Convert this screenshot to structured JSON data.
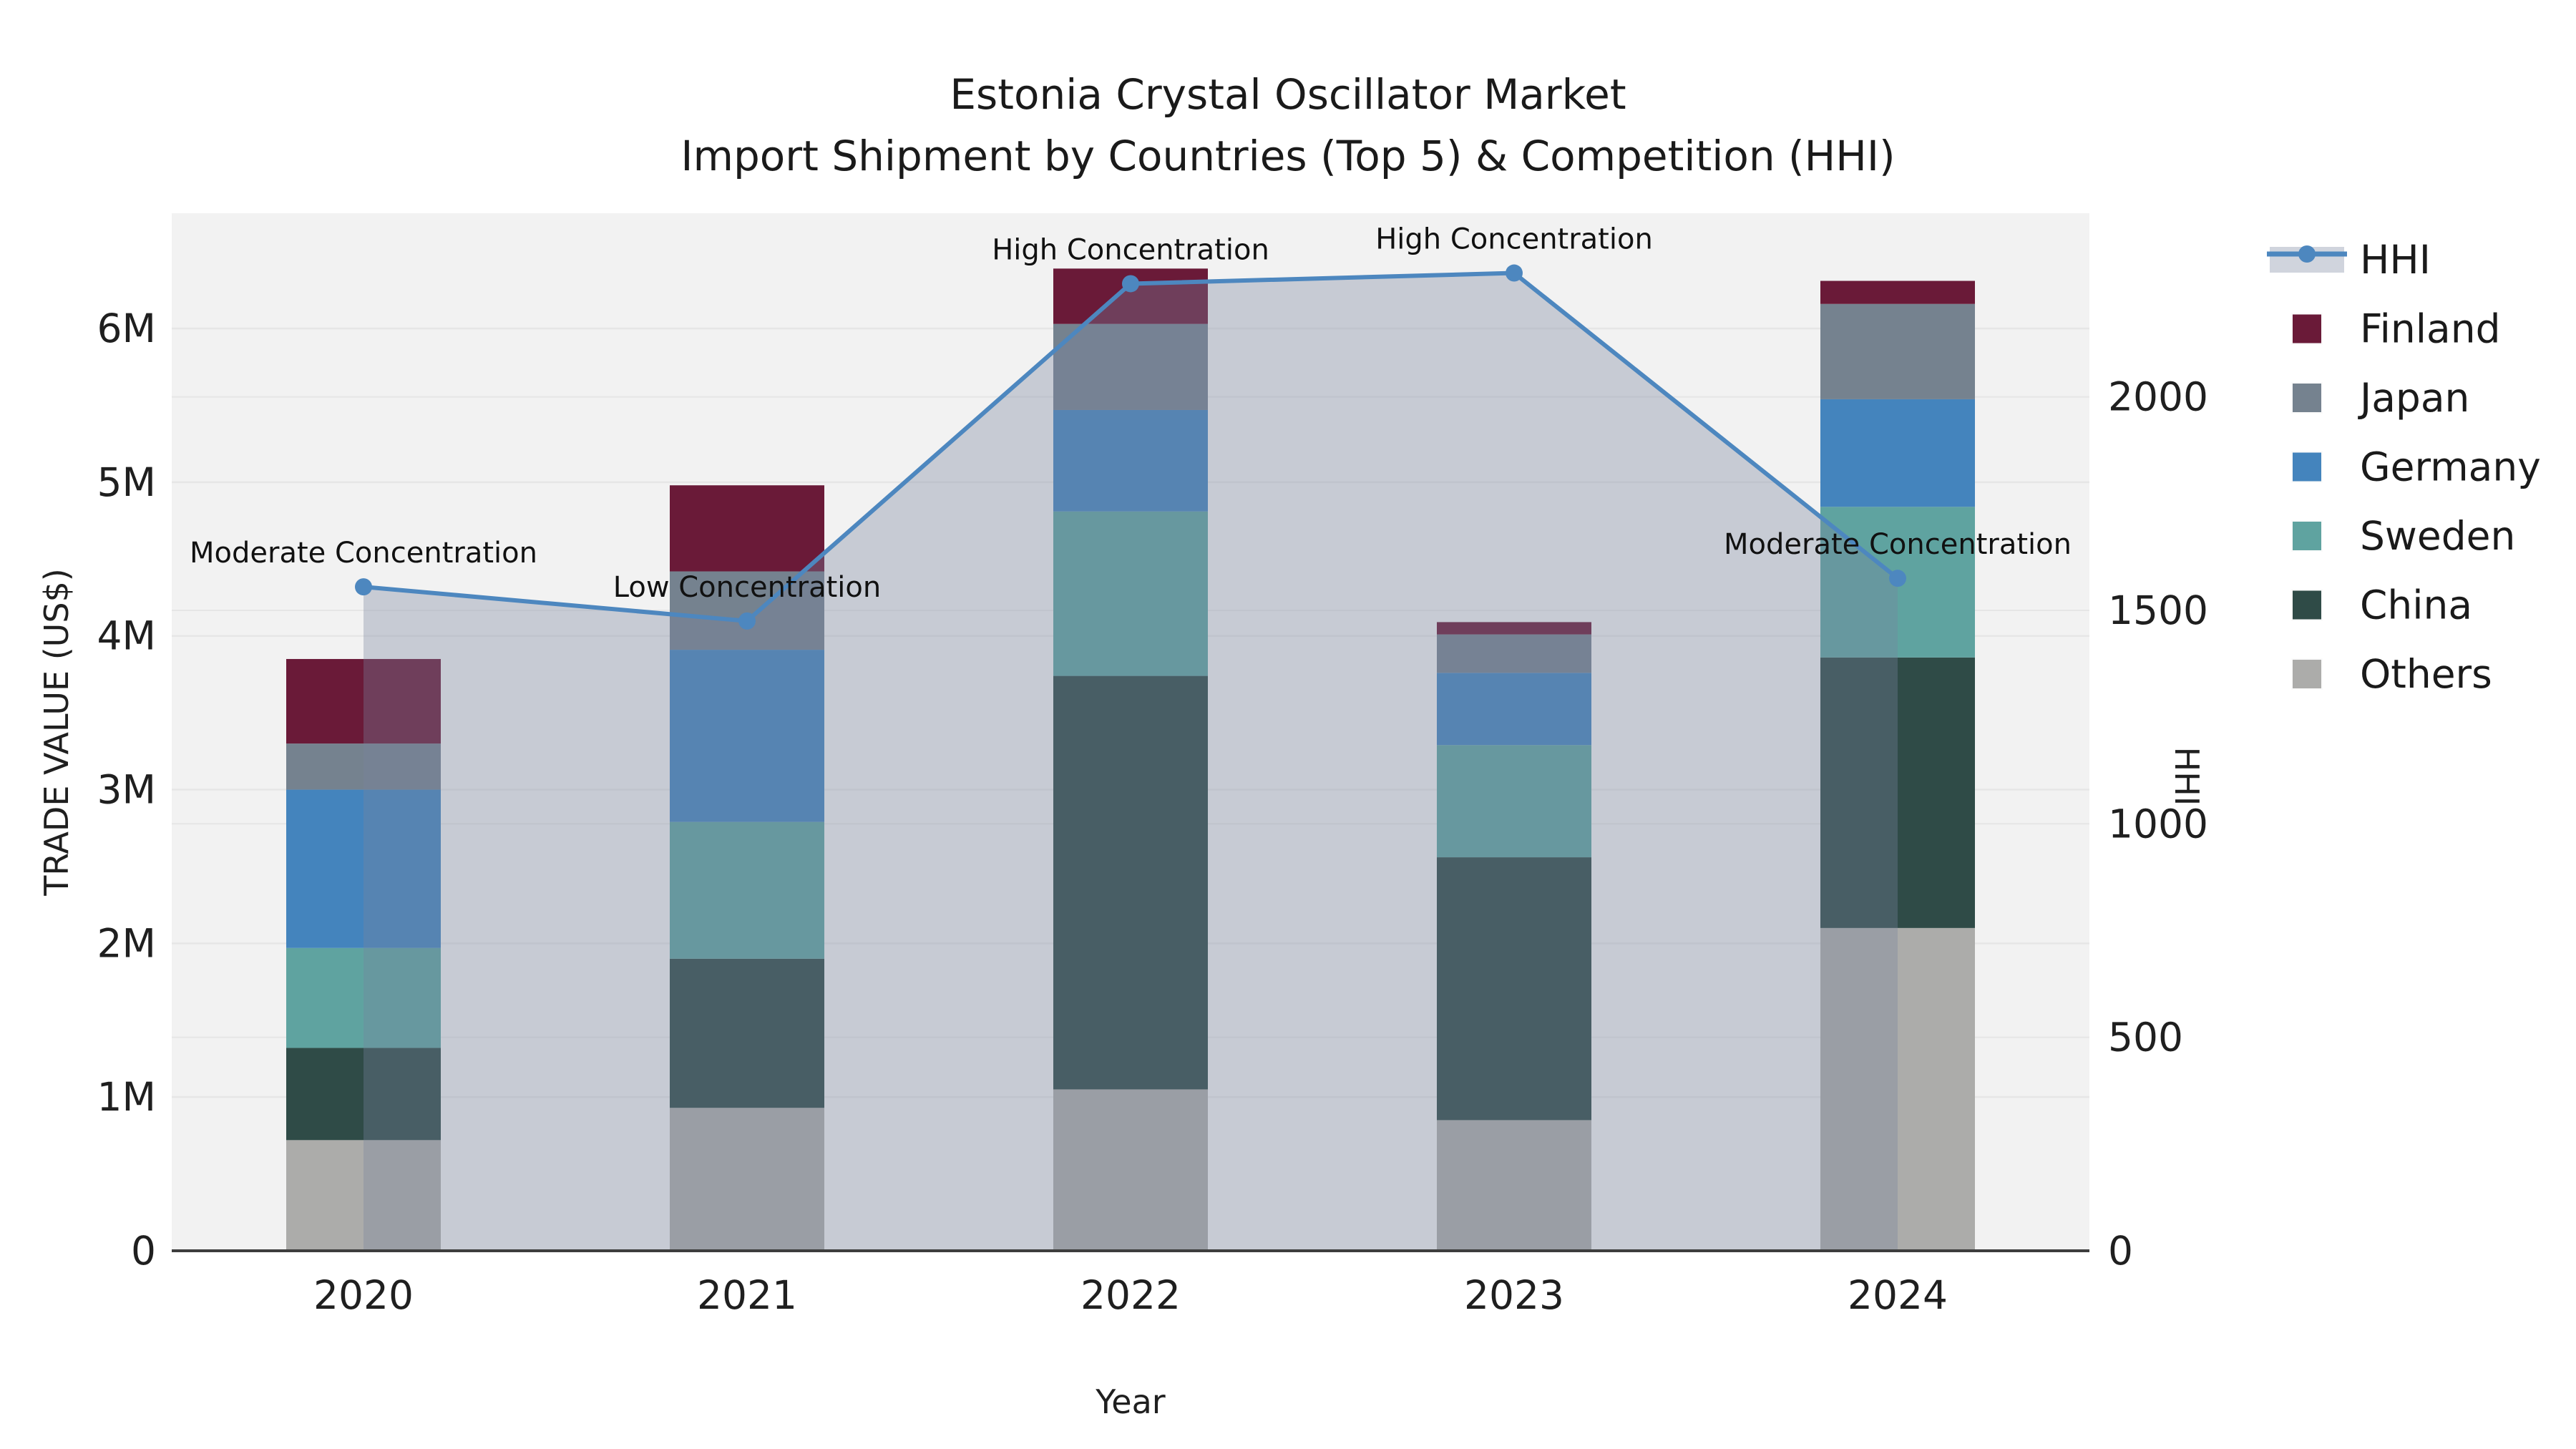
{
  "title_line1": "Estonia Crystal Oscillator Market",
  "title_line2": "Import Shipment by Countries (Top 5) & Competition (HHI)",
  "chart_data": {
    "type": "combo-stacked-bar-line",
    "categories": [
      "2020",
      "2021",
      "2022",
      "2023",
      "2024"
    ],
    "xlabel": "Year",
    "ylabel_left": "TRADE VALUE (US$)",
    "ylabel_right": "HHI",
    "y_left_ticks": [
      {
        "value": 0,
        "label": "0"
      },
      {
        "value": 1000000,
        "label": "1M"
      },
      {
        "value": 2000000,
        "label": "2M"
      },
      {
        "value": 3000000,
        "label": "3M"
      },
      {
        "value": 4000000,
        "label": "4M"
      },
      {
        "value": 5000000,
        "label": "5M"
      },
      {
        "value": 6000000,
        "label": "6M"
      }
    ],
    "y_left_max": 6750000,
    "y_right_ticks": [
      {
        "value": 0,
        "label": "0"
      },
      {
        "value": 500,
        "label": "500"
      },
      {
        "value": 1000,
        "label": "1000"
      },
      {
        "value": 1500,
        "label": "1500"
      },
      {
        "value": 2000,
        "label": "2000"
      }
    ],
    "y_right_max": 2430,
    "grid": true,
    "legend_position": "top-right-outside",
    "series": [
      {
        "name": "Others",
        "color": "#ACACAA",
        "values_usd": [
          720000,
          930000,
          1050000,
          850000,
          2100000
        ]
      },
      {
        "name": "China",
        "color": "#2F4B47",
        "values_usd": [
          600000,
          970000,
          2690000,
          1710000,
          1760000
        ]
      },
      {
        "name": "Sweden",
        "color": "#5FA3A0",
        "values_usd": [
          650000,
          890000,
          1070000,
          730000,
          980000
        ]
      },
      {
        "name": "Germany",
        "color": "#4484BD",
        "values_usd": [
          1030000,
          1120000,
          660000,
          470000,
          700000
        ]
      },
      {
        "name": "Japan",
        "color": "#75828F",
        "values_usd": [
          300000,
          510000,
          560000,
          250000,
          620000
        ]
      },
      {
        "name": "Finland",
        "color": "#6A1A38",
        "values_usd": [
          550000,
          560000,
          360000,
          80000,
          150000
        ]
      }
    ],
    "bar_totals_usd": [
      3850000,
      4980000,
      6390000,
      4090000,
      6310000
    ],
    "hhi_line": {
      "name": "HHI",
      "line_color": "#4D87BF",
      "area_fill_color": "rgba(119,133,157,0.35)",
      "values": [
        1555,
        1475,
        2265,
        2290,
        1575
      ]
    },
    "annotations": [
      {
        "category": "2020",
        "text": "Moderate Concentration"
      },
      {
        "category": "2021",
        "text": "Low Concentration"
      },
      {
        "category": "2022",
        "text": "High Concentration"
      },
      {
        "category": "2023",
        "text": "High Concentration"
      },
      {
        "category": "2024",
        "text": "Moderate Concentration"
      }
    ]
  },
  "legend": {
    "items": [
      "HHI",
      "Finland",
      "Japan",
      "Germany",
      "Sweden",
      "China",
      "Others"
    ]
  },
  "colors": {
    "plot_background": "#f2f2f2",
    "gridline": "#e6e6e6",
    "axis_line": "#3d3d3d",
    "hhi_line": "#4D87BF",
    "hhi_area": "rgba(119,133,157,0.35)"
  }
}
